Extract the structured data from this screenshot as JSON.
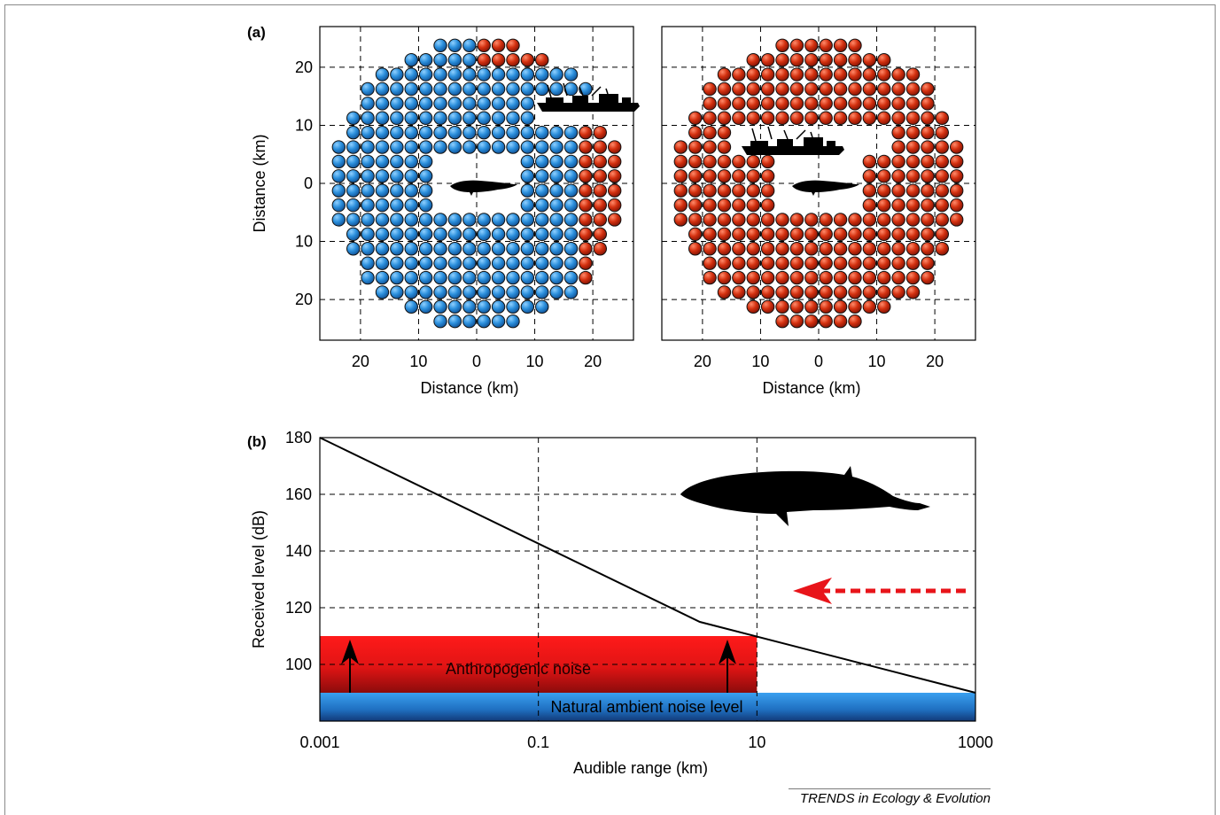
{
  "credit": "TRENDS in Ecology & Evolution",
  "chart_data": [
    {
      "panel": "(a)",
      "type": "scatter",
      "xlabel": "Distance (km)",
      "ylabel": "Distance (km)",
      "xticks": [
        "20",
        "10",
        "0",
        "10",
        "20"
      ],
      "yticks": [
        "20",
        "10",
        "0",
        "10",
        "20"
      ],
      "xlim": [
        -27,
        27
      ],
      "ylim": [
        -27,
        27
      ],
      "grid": true,
      "radius_km": 25,
      "spacing_km": 2.5,
      "colors": {
        "unmasked": "#2e8fde",
        "masked": "#c8260c"
      },
      "scenarios": [
        {
          "name": "left",
          "ship_position_km": [
            14.5,
            14.5
          ],
          "masked_region": "upper-right edge near ship"
        },
        {
          "name": "right",
          "ship_position_km": [
            -2.5,
            6
          ],
          "masked_region": "all"
        }
      ]
    },
    {
      "panel": "(b)",
      "type": "line",
      "xscale": "log",
      "xlabel": "Audible range (km)",
      "ylabel": "Received level (dB)",
      "xticks": [
        "0.001",
        "0.1",
        "10",
        "1000"
      ],
      "yticks": [
        "100",
        "120",
        "140",
        "160",
        "180"
      ],
      "xlim": [
        0.001,
        1000
      ],
      "ylim": [
        80,
        180
      ],
      "grid": true,
      "series": [
        {
          "x": [
            0.001,
            3,
            1000
          ],
          "y": [
            180,
            115,
            90
          ]
        }
      ],
      "bands": [
        {
          "label": "Anthropogenic noise",
          "x": [
            0.001,
            10
          ],
          "y": [
            90,
            110
          ],
          "color": "#e8141a"
        },
        {
          "label": "Natural ambient noise level",
          "x": [
            0.001,
            1000
          ],
          "y": [
            80,
            90
          ],
          "color": "#2f8fdf"
        }
      ],
      "colors": {
        "arrow": "#e8141a"
      }
    }
  ]
}
